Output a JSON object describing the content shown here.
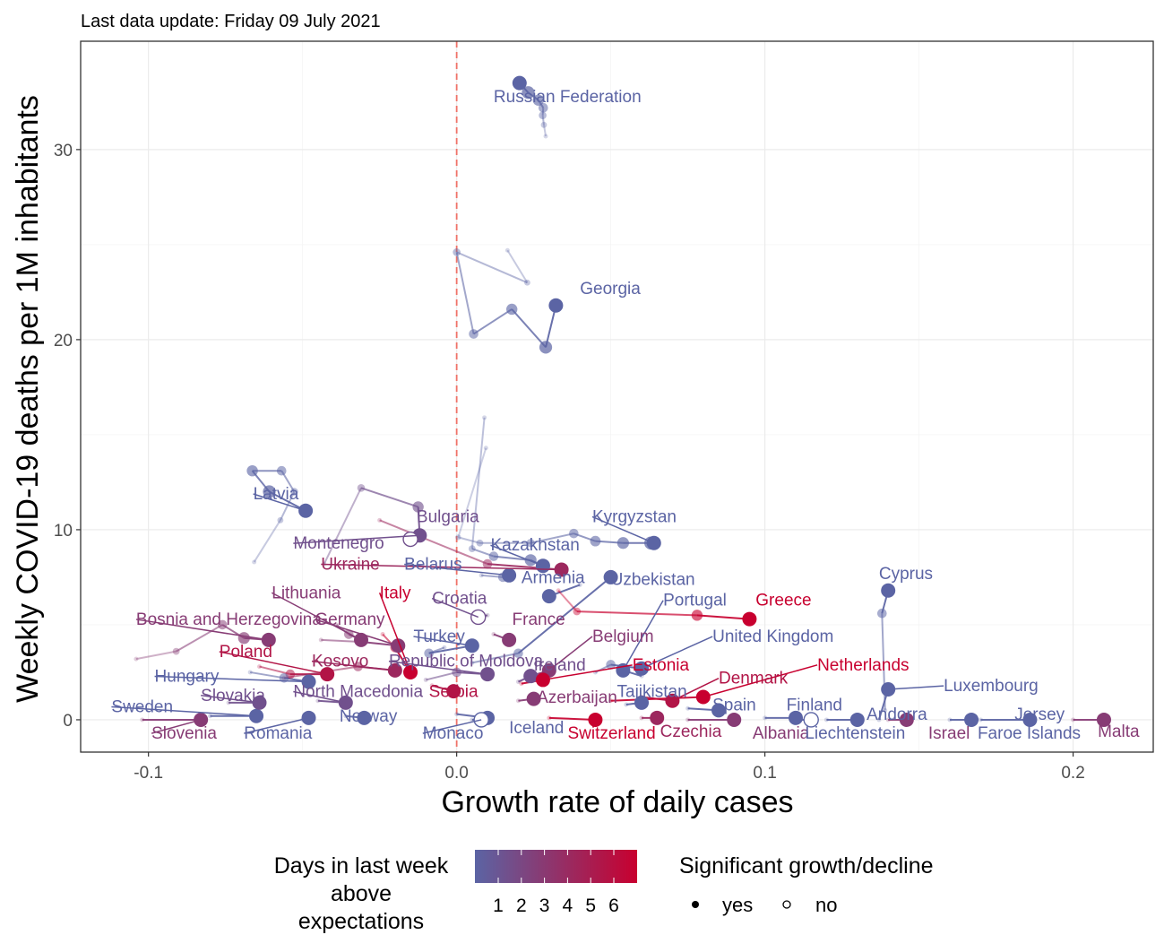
{
  "caption": "Last data update: Friday 09 July 2021",
  "colors": {
    "low": "#5b64a4",
    "high": "#c8002f",
    "refline": "#f07268"
  },
  "legend": {
    "color_title_lines": [
      "Days in last week",
      "above",
      "expectations"
    ],
    "color_ticks": [
      "1",
      "2",
      "3",
      "4",
      "5",
      "6"
    ],
    "shape_title": "Significant growth/decline",
    "shape_items": [
      {
        "label": "yes",
        "filled": true
      },
      {
        "label": "no",
        "filled": false
      }
    ]
  },
  "chart_data": {
    "type": "scatter",
    "xlabel": "Growth rate of daily cases",
    "ylabel": "Weekly COVID-19 deaths per 1M inhabitants",
    "xlim": [
      -0.122,
      0.226
    ],
    "ylim": [
      -1.7,
      35.7
    ],
    "xticks": [
      -0.1,
      0,
      0.1,
      0.2
    ],
    "xtick_labels": [
      "-0.1",
      "0.0",
      "0.1",
      "0.2"
    ],
    "yticks": [
      0,
      10,
      20,
      30
    ],
    "ytick_labels": [
      "0",
      "10",
      "20",
      "30"
    ],
    "reference_line_x": 0,
    "grid": true,
    "series": [
      {
        "name": "Russian Federation",
        "days": 1,
        "sig": true,
        "label": [
          0.012,
          32.5
        ],
        "trail": [
          [
            0.0289,
            30.7
          ],
          [
            0.0283,
            31.3
          ],
          [
            0.0279,
            31.8
          ],
          [
            0.0281,
            32.2
          ],
          [
            0.0265,
            32.6
          ],
          [
            0.0232,
            33.0
          ],
          [
            0.0204,
            33.5
          ]
        ]
      },
      {
        "name": "Georgia",
        "days": 1,
        "sig": true,
        "label": [
          0.04,
          22.4
        ],
        "trail": [
          [
            0.0165,
            24.7
          ],
          [
            0.0229,
            23.0
          ],
          [
            0.0,
            24.6
          ],
          [
            0.0055,
            20.3
          ],
          [
            0.0179,
            21.6
          ],
          [
            0.0289,
            19.6
          ],
          [
            0.0322,
            21.8
          ]
        ]
      },
      {
        "name": "Latvia",
        "days": 1,
        "sig": true,
        "label": [
          -0.066,
          11.6
        ],
        "trail": [
          [
            -0.0657,
            8.3
          ],
          [
            -0.0572,
            10.5
          ],
          [
            -0.0527,
            12.0
          ],
          [
            -0.0568,
            13.1
          ],
          [
            -0.0663,
            13.1
          ],
          [
            -0.0608,
            12.0
          ],
          [
            -0.049,
            11.0
          ]
        ]
      },
      {
        "name": "Montenegro",
        "days": 2,
        "sig": true,
        "label": [
          -0.053,
          9.0
        ],
        "trail": [
          [
            -0.043,
            8.2
          ],
          [
            -0.031,
            12.2
          ],
          [
            -0.0125,
            11.2
          ],
          [
            -0.012,
            9.7
          ]
        ]
      },
      {
        "name": "Bulgaria",
        "days": 2,
        "sig": false,
        "label": [
          -0.013,
          10.4
        ],
        "trail": [
          [
            -0.015,
            9.5
          ]
        ]
      },
      {
        "name": "Kyrgyzstan",
        "days": 1,
        "sig": true,
        "label": [
          0.044,
          10.4
        ],
        "trail": [
          [
            0.0095,
            14.3
          ],
          [
            0.0005,
            9.6
          ],
          [
            0.0075,
            9.3
          ],
          [
            0.024,
            9.3
          ],
          [
            0.038,
            9.8
          ],
          [
            0.045,
            9.4
          ],
          [
            0.054,
            9.3
          ],
          [
            0.063,
            9.3
          ],
          [
            0.064,
            9.3
          ]
        ]
      },
      {
        "name": "Kazakhstan",
        "days": 1,
        "sig": true,
        "label": [
          0.011,
          8.9
        ],
        "trail": [
          [
            0.009,
            15.9
          ],
          [
            0.005,
            9.0
          ],
          [
            0.012,
            8.6
          ],
          [
            0.024,
            8.4
          ],
          [
            0.028,
            8.1
          ]
        ]
      },
      {
        "name": "Belarus",
        "days": 1,
        "sig": true,
        "label": [
          -0.017,
          7.9
        ],
        "trail": [
          [
            0.008,
            7.6
          ],
          [
            0.015,
            7.5
          ],
          [
            0.017,
            7.6
          ]
        ]
      },
      {
        "name": "Ukraine",
        "days": 4,
        "sig": true,
        "label": [
          -0.044,
          7.9
        ],
        "trail": [
          [
            -0.025,
            10.5
          ],
          [
            0.01,
            8.2
          ],
          [
            0.034,
            7.9
          ]
        ]
      },
      {
        "name": "Armenia",
        "days": 1,
        "sig": true,
        "label": [
          0.021,
          7.2
        ],
        "trail": [
          [
            0.04,
            7.1
          ],
          [
            0.03,
            6.5
          ]
        ]
      },
      {
        "name": "Uzbekistan",
        "days": 1,
        "sig": true,
        "label": [
          0.05,
          7.1
        ],
        "trail": [
          [
            0.005,
            3.0
          ],
          [
            0.02,
            3.5
          ],
          [
            0.05,
            7.5
          ]
        ]
      },
      {
        "name": "Cyprus",
        "days": 1,
        "sig": true,
        "label": [
          0.137,
          7.4
        ],
        "trail": [
          [
            0.139,
            0.5
          ],
          [
            0.138,
            5.6
          ],
          [
            0.14,
            6.8
          ]
        ]
      },
      {
        "name": "Lithuania",
        "days": 3,
        "sig": true,
        "label": [
          -0.06,
          6.4
        ],
        "trail": [
          [
            -0.039,
            5.0
          ],
          [
            -0.035,
            4.5
          ],
          [
            -0.031,
            4.2
          ]
        ]
      },
      {
        "name": "Italy",
        "days": 6,
        "sig": true,
        "label": [
          -0.025,
          6.4
        ],
        "trail": [
          [
            -0.024,
            4.5
          ],
          [
            -0.02,
            3.8
          ],
          [
            -0.015,
            2.5
          ]
        ]
      },
      {
        "name": "Croatia",
        "days": 2,
        "sig": false,
        "label": [
          -0.008,
          6.1
        ],
        "trail": [
          [
            0.01,
            5.5
          ],
          [
            0.007,
            5.4
          ]
        ]
      },
      {
        "name": "Portugal",
        "days": 1,
        "sig": true,
        "label": [
          0.067,
          6.0
        ],
        "trail": [
          [
            0.06,
            2.3
          ],
          [
            0.054,
            2.6
          ]
        ]
      },
      {
        "name": "Greece",
        "days": 6,
        "sig": true,
        "label": [
          0.097,
          6.0
        ],
        "trail": [
          [
            0.033,
            6.8
          ],
          [
            0.039,
            5.7
          ],
          [
            0.078,
            5.5
          ],
          [
            0.095,
            5.3
          ]
        ]
      },
      {
        "name": "Bosnia and Herzegovina",
        "days": 3,
        "sig": true,
        "label": [
          -0.104,
          5.0
        ],
        "trail": [
          [
            -0.104,
            3.2
          ],
          [
            -0.091,
            3.6
          ],
          [
            -0.076,
            5.0
          ],
          [
            -0.069,
            4.3
          ],
          [
            -0.061,
            4.2
          ]
        ]
      },
      {
        "name": "Germany",
        "days": 3,
        "sig": true,
        "label": [
          -0.046,
          5.0
        ],
        "trail": [
          [
            -0.044,
            4.2
          ],
          [
            -0.031,
            4.1
          ],
          [
            -0.019,
            3.9
          ]
        ]
      },
      {
        "name": "France",
        "days": 3,
        "sig": true,
        "label": [
          0.018,
          5.0
        ],
        "trail": [
          [
            0.012,
            4.5
          ],
          [
            0.017,
            4.2
          ]
        ]
      },
      {
        "name": "Turkey",
        "days": 1,
        "sig": true,
        "label": [
          -0.014,
          4.1
        ],
        "trail": [
          [
            -0.004,
            3.8
          ],
          [
            -0.009,
            3.5
          ],
          [
            0.005,
            3.9
          ]
        ]
      },
      {
        "name": "Belgium",
        "days": 3,
        "sig": true,
        "label": [
          0.044,
          4.1
        ],
        "trail": [
          [
            0.024,
            2.3
          ],
          [
            0.03,
            2.6
          ]
        ]
      },
      {
        "name": "United Kingdom",
        "days": 1,
        "sig": true,
        "label": [
          0.083,
          4.1
        ],
        "trail": [
          [
            0.045,
            2.5
          ],
          [
            0.05,
            2.9
          ],
          [
            0.06,
            2.7
          ]
        ]
      },
      {
        "name": "Poland",
        "days": 5,
        "sig": true,
        "label": [
          -0.077,
          3.3
        ],
        "trail": [
          [
            -0.064,
            2.8
          ],
          [
            -0.054,
            2.4
          ],
          [
            -0.042,
            2.4
          ]
        ]
      },
      {
        "name": "Kosovo",
        "days": 4,
        "sig": true,
        "label": [
          -0.047,
          2.8
        ],
        "trail": [
          [
            -0.056,
            2.2
          ],
          [
            -0.032,
            2.8
          ],
          [
            -0.02,
            2.6
          ]
        ]
      },
      {
        "name": "Republic of Moldova",
        "days": 2,
        "sig": true,
        "label": [
          -0.022,
          2.8
        ],
        "trail": [
          [
            -0.01,
            2.1
          ],
          [
            0.0,
            2.5
          ],
          [
            0.01,
            2.4
          ]
        ]
      },
      {
        "name": "Ireland",
        "days": 2,
        "sig": true,
        "label": [
          0.025,
          2.6
        ],
        "trail": [
          [
            0.02,
            2.0
          ],
          [
            0.024,
            2.3
          ]
        ]
      },
      {
        "name": "Estonia",
        "days": 6,
        "sig": true,
        "label": [
          0.057,
          2.6
        ],
        "trail": [
          [
            0.021,
            1.9
          ],
          [
            0.028,
            2.1
          ]
        ]
      },
      {
        "name": "Denmark",
        "days": 5,
        "sig": true,
        "label": [
          0.085,
          1.9
        ],
        "trail": [
          [
            0.06,
            1.2
          ],
          [
            0.07,
            1.0
          ]
        ]
      },
      {
        "name": "Netherlands",
        "days": 6,
        "sig": true,
        "label": [
          0.117,
          2.6
        ],
        "trail": [
          [
            0.05,
            1.0
          ],
          [
            0.08,
            1.2
          ]
        ]
      },
      {
        "name": "Hungary",
        "days": 1,
        "sig": true,
        "label": [
          -0.098,
          2.0
        ],
        "trail": [
          [
            -0.067,
            2.5
          ],
          [
            -0.056,
            2.2
          ],
          [
            -0.048,
            2.0
          ]
        ]
      },
      {
        "name": "Serbia",
        "days": 5,
        "sig": true,
        "label": [
          -0.009,
          1.2
        ],
        "trail": [
          [
            -0.008,
            1.8
          ],
          [
            -0.001,
            1.5
          ]
        ]
      },
      {
        "name": "Azerbaijan",
        "days": 3,
        "sig": true,
        "label": [
          0.026,
          0.9
        ],
        "trail": [
          [
            0.02,
            1.0
          ],
          [
            0.025,
            1.1
          ]
        ]
      },
      {
        "name": "Tajikistan",
        "days": 1,
        "sig": true,
        "label": [
          0.052,
          1.2
        ],
        "trail": [
          [
            0.055,
            0.8
          ],
          [
            0.06,
            0.9
          ]
        ]
      },
      {
        "name": "Luxembourg",
        "days": 1,
        "sig": true,
        "label": [
          0.158,
          1.5
        ],
        "trail": [
          [
            0.137,
            0.0
          ],
          [
            0.14,
            1.6
          ]
        ]
      },
      {
        "name": "North Macedonia",
        "days": 2,
        "sig": true,
        "label": [
          -0.053,
          1.2
        ],
        "trail": [
          [
            -0.045,
            1.0
          ],
          [
            -0.036,
            0.9
          ]
        ]
      },
      {
        "name": "Spain",
        "days": 1,
        "sig": true,
        "label": [
          0.083,
          0.5
        ],
        "trail": [
          [
            0.075,
            0.6
          ],
          [
            0.085,
            0.5
          ]
        ]
      },
      {
        "name": "Finland",
        "days": 1,
        "sig": true,
        "label": [
          0.107,
          0.5
        ],
        "trail": [
          [
            0.1,
            0.1
          ],
          [
            0.11,
            0.1
          ]
        ]
      },
      {
        "name": "Andorra",
        "days": 1,
        "sig": true,
        "label": [
          0.133,
          0.0
        ],
        "trail": [
          [
            0.12,
            0.0
          ],
          [
            0.13,
            0.0
          ]
        ]
      },
      {
        "name": "Jersey",
        "days": 1,
        "sig": true,
        "label": [
          0.181,
          0.0
        ],
        "trail": [
          [
            0.17,
            0.0
          ],
          [
            0.186,
            0.0
          ]
        ]
      },
      {
        "name": "Sweden",
        "days": 1,
        "sig": true,
        "label": [
          -0.112,
          0.4
        ],
        "trail": [
          [
            -0.08,
            0.2
          ],
          [
            -0.065,
            0.2
          ]
        ]
      },
      {
        "name": "Slovakia",
        "days": 2,
        "sig": true,
        "label": [
          -0.083,
          1.0
        ],
        "trail": [
          [
            -0.074,
            0.9
          ],
          [
            -0.064,
            0.9
          ]
        ]
      },
      {
        "name": "Norway",
        "days": 1,
        "sig": true,
        "label": [
          -0.038,
          -0.1
        ],
        "trail": [
          [
            -0.036,
            0.2
          ],
          [
            -0.03,
            0.1
          ]
        ]
      },
      {
        "name": "Iceland",
        "days": 1,
        "sig": true,
        "label": [
          0.017,
          -0.7
        ],
        "trail": [
          [
            0.0,
            0.3
          ],
          [
            0.01,
            0.1
          ]
        ]
      },
      {
        "name": "Slovenia",
        "days": 3,
        "sig": true,
        "label": [
          -0.099,
          -1.0
        ],
        "trail": [
          [
            -0.102,
            0.0
          ],
          [
            -0.083,
            0.0
          ]
        ]
      },
      {
        "name": "Romania",
        "days": 1,
        "sig": true,
        "label": [
          -0.069,
          -1.0
        ],
        "trail": [
          [
            -0.05,
            0.0
          ],
          [
            -0.048,
            0.1
          ]
        ]
      },
      {
        "name": "Monaco",
        "days": 1,
        "sig": false,
        "label": [
          -0.011,
          -1.0
        ],
        "trail": [
          [
            0.005,
            0.0
          ],
          [
            0.008,
            0.0
          ]
        ]
      },
      {
        "name": "Switzerland",
        "days": 6,
        "sig": true,
        "label": [
          0.036,
          -1.0
        ],
        "trail": [
          [
            0.03,
            0.1
          ],
          [
            0.045,
            0.0
          ]
        ]
      },
      {
        "name": "Czechia",
        "days": 4,
        "sig": true,
        "label": [
          0.066,
          -0.9
        ],
        "trail": [
          [
            0.06,
            0.1
          ],
          [
            0.065,
            0.1
          ]
        ]
      },
      {
        "name": "Albania",
        "days": 3,
        "sig": true,
        "label": [
          0.096,
          -1.0
        ],
        "trail": [
          [
            0.075,
            0.0
          ],
          [
            0.09,
            0.0
          ]
        ]
      },
      {
        "name": "Liechtenstein",
        "days": 1,
        "sig": false,
        "label": [
          0.113,
          -1.0
        ],
        "trail": [
          [
            0.11,
            0.0
          ],
          [
            0.115,
            0.0
          ]
        ]
      },
      {
        "name": "Israel",
        "days": 3,
        "sig": true,
        "label": [
          0.153,
          -1.0
        ],
        "trail": [
          [
            0.14,
            0.0
          ],
          [
            0.146,
            0.0
          ]
        ]
      },
      {
        "name": "Faroe Islands",
        "days": 1,
        "sig": true,
        "label": [
          0.169,
          -1.0
        ],
        "trail": [
          [
            0.16,
            0.0
          ],
          [
            0.167,
            0.0
          ]
        ]
      },
      {
        "name": "Malta",
        "days": 3,
        "sig": true,
        "label": [
          0.208,
          -0.9
        ],
        "trail": [
          [
            0.2,
            0.0
          ],
          [
            0.21,
            0.0
          ]
        ]
      }
    ]
  }
}
